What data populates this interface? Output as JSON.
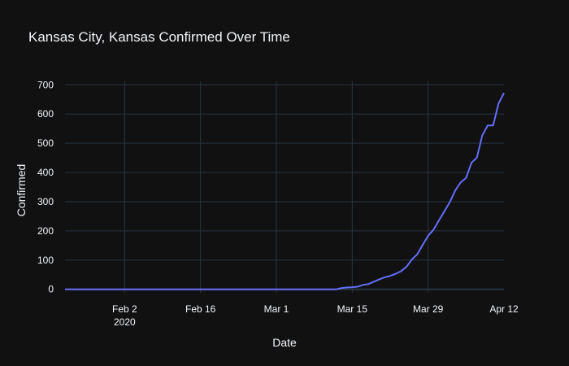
{
  "chart_data": {
    "type": "line",
    "title": "Kansas City, Kansas Confirmed Over Time",
    "xlabel": "Date",
    "ylabel": "Confirmed",
    "x_start": "2020-01-22",
    "x_end": "2020-04-12",
    "xlim": [
      "2020-01-22",
      "2020-04-12"
    ],
    "ylim": [
      -12,
      712
    ],
    "x_ticks": [
      {
        "date": "2020-02-02",
        "label": "Feb 2",
        "sublabel": "2020"
      },
      {
        "date": "2020-02-16",
        "label": "Feb 16"
      },
      {
        "date": "2020-03-01",
        "label": "Mar 1"
      },
      {
        "date": "2020-03-15",
        "label": "Mar 15"
      },
      {
        "date": "2020-03-29",
        "label": "Mar 29"
      },
      {
        "date": "2020-04-12",
        "label": "Apr 12"
      }
    ],
    "y_ticks": [
      0,
      100,
      200,
      300,
      400,
      500,
      600,
      700
    ],
    "grid": true,
    "line_color": "#636efa",
    "x": [
      "2020-01-22",
      "2020-03-12",
      "2020-03-13",
      "2020-03-14",
      "2020-03-15",
      "2020-03-16",
      "2020-03-17",
      "2020-03-18",
      "2020-03-19",
      "2020-03-20",
      "2020-03-21",
      "2020-03-22",
      "2020-03-23",
      "2020-03-24",
      "2020-03-25",
      "2020-03-26",
      "2020-03-27",
      "2020-03-28",
      "2020-03-29",
      "2020-03-30",
      "2020-03-31",
      "2020-04-01",
      "2020-04-02",
      "2020-04-03",
      "2020-04-04",
      "2020-04-05",
      "2020-04-06",
      "2020-04-07",
      "2020-04-08",
      "2020-04-09",
      "2020-04-10",
      "2020-04-11",
      "2020-04-12"
    ],
    "y": [
      0,
      0,
      4,
      6,
      7,
      9,
      15,
      18,
      26,
      34,
      41,
      46,
      53,
      62,
      77,
      102,
      120,
      152,
      183,
      204,
      236,
      267,
      298,
      338,
      366,
      381,
      433,
      451,
      527,
      561,
      561,
      636,
      672
    ]
  }
}
